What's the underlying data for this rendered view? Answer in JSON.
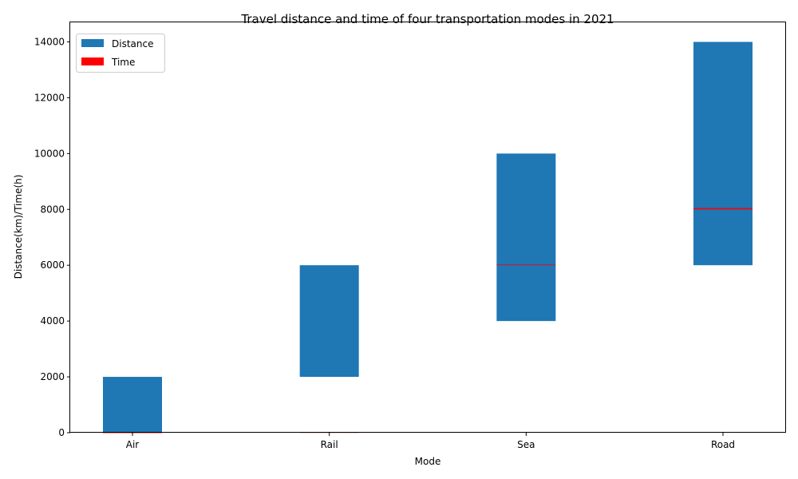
{
  "chart_data": {
    "type": "bar",
    "title": "Travel distance and time of four transportation modes in 2021",
    "xlabel": "Mode",
    "ylabel": "Distance(km)/Time(h)",
    "categories": [
      "Air",
      "Rail",
      "Sea",
      "Road"
    ],
    "series": [
      {
        "name": "Distance",
        "bottom": [
          0,
          2000,
          4000,
          6000
        ],
        "values": [
          2000,
          4000,
          6000,
          8000
        ],
        "color": "#1f77b4"
      },
      {
        "name": "Time",
        "bottom": [
          2,
          6,
          6000,
          8000
        ],
        "values": [
          2,
          6,
          24,
          48
        ],
        "color": "#ff0000"
      }
    ],
    "ylim": [
      0,
      14700
    ],
    "yticks": [
      0,
      2000,
      4000,
      6000,
      8000,
      10000,
      12000,
      14000
    ],
    "grid": false,
    "legend_position": "top-left"
  }
}
